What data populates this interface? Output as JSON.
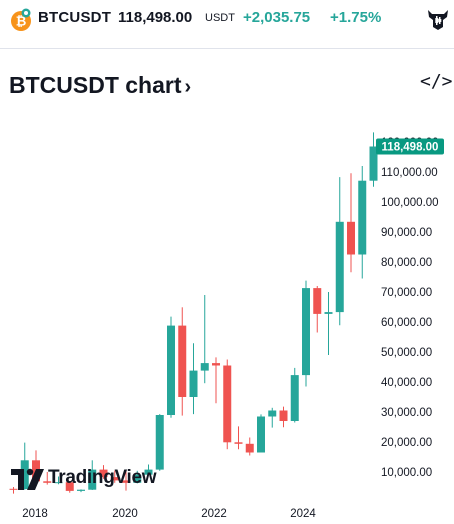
{
  "header": {
    "symbol": "BTCUSDT",
    "price": "118,498.00",
    "price_unit": "USDT",
    "change": "+2,035.75",
    "change_pct": "+1.75%",
    "coin_icon": "bitcoin-icon",
    "brand_icon": "bull-logo-icon"
  },
  "chart_title": "BTCUSDT chart",
  "chart_title_chevron": "›",
  "embed_icon_label": "</>",
  "watermark": "TradingView",
  "colors": {
    "up": "#26a69a",
    "down": "#ef5350",
    "axis_text": "#131722",
    "price_label_bg": "#089981"
  },
  "chart_data": {
    "type": "candlestick",
    "interval": "quarterly",
    "title": "",
    "last_price_label": "118,498.00",
    "y_ticks": [
      "10,000.00",
      "20,000.00",
      "30,000.00",
      "40,000.00",
      "50,000.00",
      "60,000.00",
      "70,000.00",
      "80,000.00",
      "90,000.00",
      "100,000.00",
      "110,000.00",
      "120,000.00"
    ],
    "x_ticks": [
      "2018",
      "2020",
      "2022",
      "2024"
    ],
    "ylim": [
      0,
      125000
    ],
    "candles": [
      {
        "t": "2017-Q3",
        "o": 4400,
        "h": 5000,
        "l": 2800,
        "c": 4300
      },
      {
        "t": "2017-Q4",
        "o": 4300,
        "h": 19800,
        "l": 4100,
        "c": 13900
      },
      {
        "t": "2018-Q1",
        "o": 13900,
        "h": 17200,
        "l": 5900,
        "c": 6900
      },
      {
        "t": "2018-Q2",
        "o": 6900,
        "h": 10000,
        "l": 5800,
        "c": 6400
      },
      {
        "t": "2018-Q3",
        "o": 6400,
        "h": 8500,
        "l": 5900,
        "c": 6600
      },
      {
        "t": "2018-Q4",
        "o": 6600,
        "h": 6800,
        "l": 3100,
        "c": 3700
      },
      {
        "t": "2019-Q1",
        "o": 3700,
        "h": 4200,
        "l": 3300,
        "c": 4100
      },
      {
        "t": "2019-Q2",
        "o": 4100,
        "h": 13900,
        "l": 4000,
        "c": 10800
      },
      {
        "t": "2019-Q3",
        "o": 10800,
        "h": 12300,
        "l": 7700,
        "c": 8300
      },
      {
        "t": "2019-Q4",
        "o": 8300,
        "h": 10500,
        "l": 6400,
        "c": 7200
      },
      {
        "t": "2020-Q1",
        "o": 7200,
        "h": 10500,
        "l": 3800,
        "c": 6400
      },
      {
        "t": "2020-Q2",
        "o": 6400,
        "h": 10400,
        "l": 6200,
        "c": 9100
      },
      {
        "t": "2020-Q3",
        "o": 9100,
        "h": 12500,
        "l": 8900,
        "c": 10800
      },
      {
        "t": "2020-Q4",
        "o": 10800,
        "h": 29300,
        "l": 10400,
        "c": 29000
      },
      {
        "t": "2021-Q1",
        "o": 29000,
        "h": 61800,
        "l": 28100,
        "c": 58800
      },
      {
        "t": "2021-Q2",
        "o": 58800,
        "h": 64900,
        "l": 28800,
        "c": 35000
      },
      {
        "t": "2021-Q3",
        "o": 35000,
        "h": 52900,
        "l": 29300,
        "c": 43800
      },
      {
        "t": "2021-Q4",
        "o": 43800,
        "h": 69000,
        "l": 39600,
        "c": 46300
      },
      {
        "t": "2022-Q1",
        "o": 46300,
        "h": 48200,
        "l": 32900,
        "c": 45500
      },
      {
        "t": "2022-Q2",
        "o": 45500,
        "h": 47500,
        "l": 17600,
        "c": 19900
      },
      {
        "t": "2022-Q3",
        "o": 19900,
        "h": 25200,
        "l": 17600,
        "c": 19400
      },
      {
        "t": "2022-Q4",
        "o": 19400,
        "h": 21500,
        "l": 15500,
        "c": 16500
      },
      {
        "t": "2023-Q1",
        "o": 16500,
        "h": 29200,
        "l": 16500,
        "c": 28500
      },
      {
        "t": "2023-Q2",
        "o": 28500,
        "h": 31400,
        "l": 24800,
        "c": 30500
      },
      {
        "t": "2023-Q3",
        "o": 30500,
        "h": 31800,
        "l": 24900,
        "c": 27000
      },
      {
        "t": "2023-Q4",
        "o": 27000,
        "h": 44700,
        "l": 26500,
        "c": 42300
      },
      {
        "t": "2024-Q1",
        "o": 42300,
        "h": 73800,
        "l": 38500,
        "c": 71300
      },
      {
        "t": "2024-Q2",
        "o": 71300,
        "h": 72000,
        "l": 56500,
        "c": 62700
      },
      {
        "t": "2024-Q3",
        "o": 62700,
        "h": 70000,
        "l": 49000,
        "c": 63300
      },
      {
        "t": "2024-Q4",
        "o": 63300,
        "h": 108300,
        "l": 58900,
        "c": 93400
      },
      {
        "t": "2025-Q1",
        "o": 93400,
        "h": 109600,
        "l": 76600,
        "c": 82500
      },
      {
        "t": "2025-Q2",
        "o": 82500,
        "h": 112000,
        "l": 74500,
        "c": 107100
      },
      {
        "t": "2025-Q3",
        "o": 107100,
        "h": 123200,
        "l": 105100,
        "c": 118498
      }
    ]
  }
}
